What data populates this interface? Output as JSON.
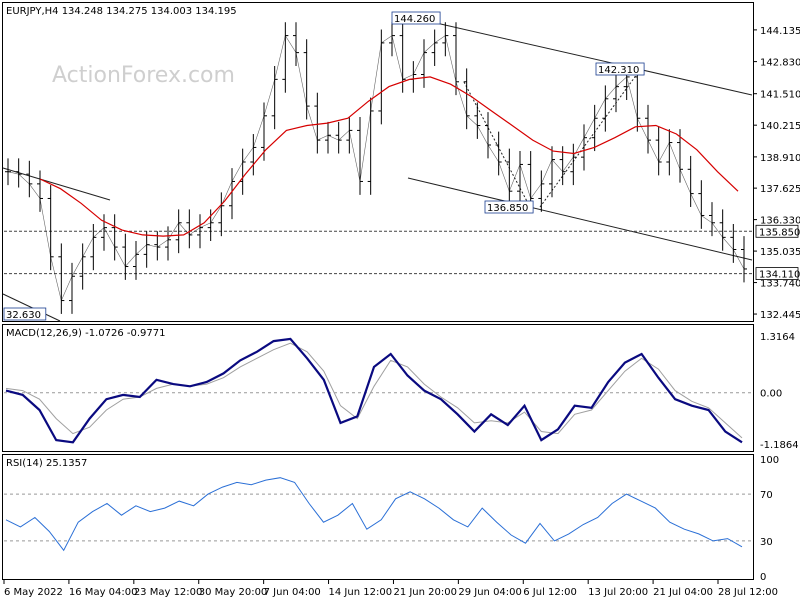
{
  "chart_data": [
    {
      "type": "line",
      "title": "EURJPY,H4 134.248 134.275 134.003 134.195",
      "symbol": "EURJPY",
      "timeframe": "H4",
      "ohlc": {
        "open": 134.248,
        "high": 134.275,
        "low": 134.003,
        "close": 134.195
      },
      "watermark": "ActionForex.com",
      "x_labels": [
        "6 May 2022",
        "16 May 04:00",
        "23 May 12:00",
        "30 May 20:00",
        "7 Jun 04:00",
        "14 Jun 12:00",
        "21 Jun 20:00",
        "29 Jun 04:00",
        "6 Jul 12:00",
        "13 Jul 20:00",
        "21 Jul 04:00",
        "28 Jul 12:00"
      ],
      "y_ticks": [
        "144.135",
        "142.830",
        "141.510",
        "140.215",
        "138.910",
        "137.625",
        "136.330",
        "135.035",
        "133.740",
        "132.445"
      ],
      "ylim": [
        132.2,
        145.2
      ],
      "highlighted_levels": [
        {
          "value": "135.850",
          "line": "dashed"
        },
        {
          "value": "134.110",
          "line": "dashed"
        }
      ],
      "annotations": [
        {
          "text": "144.260",
          "price": 144.26
        },
        {
          "text": "142.310",
          "price": 142.31
        },
        {
          "text": "136.850",
          "price": 136.85
        },
        {
          "text": "32.630",
          "price": 132.63
        }
      ],
      "series": [
        {
          "kind": "price-bars",
          "color": "#000000",
          "values": [
            138.3,
            138.2,
            137.8,
            137.2,
            134.8,
            133.0,
            134.0,
            134.8,
            135.6,
            136.0,
            135.2,
            134.4,
            134.9,
            135.3,
            135.2,
            135.5,
            136.2,
            135.7,
            136.0,
            136.2,
            136.9,
            137.9,
            138.7,
            139.3,
            140.6,
            142.1,
            143.9,
            143.2,
            141.0,
            139.6,
            139.8,
            139.6,
            140.0,
            137.9,
            140.8,
            143.6,
            143.9,
            142.1,
            142.3,
            143.2,
            143.6,
            143.9,
            142.0,
            140.6,
            140.2,
            139.4,
            138.7,
            137.5,
            138.6,
            137.2,
            137.8,
            138.8,
            138.3,
            138.9,
            139.7,
            140.5,
            141.3,
            141.8,
            142.2,
            140.5,
            139.6,
            138.7,
            139.5,
            138.4,
            137.4,
            136.5,
            136.2,
            135.6,
            135.1,
            134.3
          ]
        },
        {
          "name": "",
          "kind": "moving-average",
          "color": "#d60000",
          "values": [
            138.0,
            137.6,
            137.0,
            136.3,
            135.9,
            135.7,
            135.65,
            135.7,
            136.2,
            137.1,
            138.2,
            139.2,
            140.0,
            140.2,
            140.3,
            140.5,
            141.2,
            141.8,
            142.1,
            142.2,
            141.9,
            141.4,
            140.8,
            140.2,
            139.6,
            139.15,
            139.05,
            139.3,
            139.7,
            140.15,
            140.2,
            139.85,
            139.2,
            138.3,
            137.5
          ]
        }
      ]
    },
    {
      "type": "line",
      "title": "MACD(12,26,9) -1.0726 -0.9771",
      "y_ticks": [
        "1.3164",
        "0.00",
        "-1.1864"
      ],
      "ylim": [
        -1.33,
        1.55
      ],
      "series": [
        {
          "kind": "macd-main",
          "color": "#0a0a80",
          "values": [
            0.05,
            -0.05,
            -0.4,
            -1.1,
            -1.15,
            -0.6,
            -0.15,
            -0.05,
            -0.1,
            0.3,
            0.2,
            0.15,
            0.25,
            0.45,
            0.75,
            0.95,
            1.2,
            1.25,
            0.8,
            0.3,
            -0.7,
            -0.55,
            0.6,
            0.9,
            0.4,
            0.05,
            -0.15,
            -0.5,
            -0.9,
            -0.5,
            -0.75,
            -0.3,
            -1.1,
            -0.85,
            -0.3,
            -0.35,
            0.25,
            0.7,
            0.9,
            0.35,
            -0.15,
            -0.3,
            -0.4,
            -0.9,
            -1.15
          ]
        },
        {
          "kind": "macd-signal",
          "color": "#a0a0a0",
          "values": [
            0.1,
            0.05,
            -0.15,
            -0.6,
            -0.95,
            -0.8,
            -0.4,
            -0.15,
            -0.1,
            0.1,
            0.2,
            0.15,
            0.2,
            0.35,
            0.6,
            0.8,
            1.0,
            1.15,
            0.95,
            0.5,
            -0.3,
            -0.6,
            0.15,
            0.75,
            0.6,
            0.2,
            -0.1,
            -0.35,
            -0.7,
            -0.65,
            -0.7,
            -0.45,
            -0.9,
            -0.95,
            -0.5,
            -0.4,
            0.05,
            0.5,
            0.8,
            0.55,
            0.05,
            -0.2,
            -0.35,
            -0.7,
            -1.05
          ]
        }
      ]
    },
    {
      "type": "line",
      "title": "RSI(14) 25.1357",
      "y_ticks": [
        "100",
        "70",
        "30",
        "0"
      ],
      "ylim": [
        0,
        100
      ],
      "levels": [
        70,
        30
      ],
      "series": [
        {
          "kind": "rsi",
          "color": "#2a6fd6",
          "values": [
            48,
            42,
            50,
            38,
            22,
            46,
            55,
            62,
            52,
            60,
            55,
            58,
            64,
            60,
            70,
            76,
            80,
            78,
            82,
            84,
            80,
            62,
            46,
            52,
            62,
            40,
            48,
            66,
            72,
            66,
            58,
            48,
            42,
            58,
            46,
            35,
            28,
            45,
            30,
            36,
            44,
            50,
            62,
            70,
            64,
            58,
            46,
            40,
            36,
            30,
            32,
            25
          ]
        }
      ]
    }
  ]
}
